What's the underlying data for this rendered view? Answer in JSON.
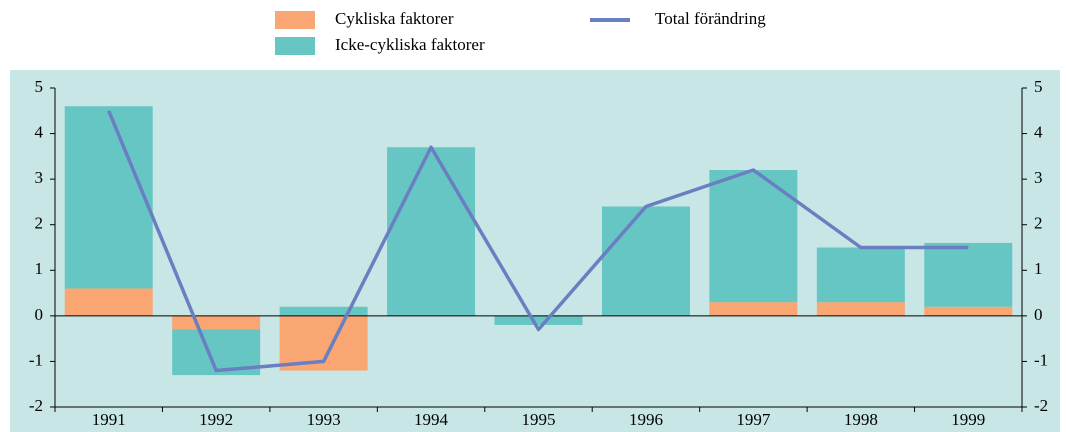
{
  "chart_data": {
    "type": "bar",
    "stacked": true,
    "categories": [
      "1991",
      "1992",
      "1993",
      "1994",
      "1995",
      "1996",
      "1997",
      "1998",
      "1999"
    ],
    "series": [
      {
        "name": "Cykliska faktorer",
        "color": "#f9a672",
        "values": [
          0.6,
          -0.3,
          -1.2,
          0,
          0,
          0,
          0.3,
          0.3,
          0.2
        ]
      },
      {
        "name": "Icke-cykliska faktorer",
        "color": "#66c6c3",
        "values": [
          4.0,
          -1.0,
          0.2,
          3.7,
          -0.2,
          2.4,
          2.9,
          1.2,
          1.4
        ]
      },
      {
        "name": "Total förändring",
        "type": "line",
        "color": "#6a7fc1",
        "values": [
          4.5,
          -1.2,
          -1.0,
          3.7,
          -0.3,
          2.4,
          3.2,
          1.5,
          1.5
        ]
      }
    ],
    "ylim": [
      -2,
      5
    ],
    "yticks": [
      -2,
      -1,
      0,
      1,
      2,
      3,
      4,
      5
    ],
    "y2lim": [
      -2,
      5
    ],
    "y2ticks": [
      -2,
      -1,
      0,
      1,
      2,
      3,
      4,
      5
    ],
    "background": "#c9e6e6"
  }
}
